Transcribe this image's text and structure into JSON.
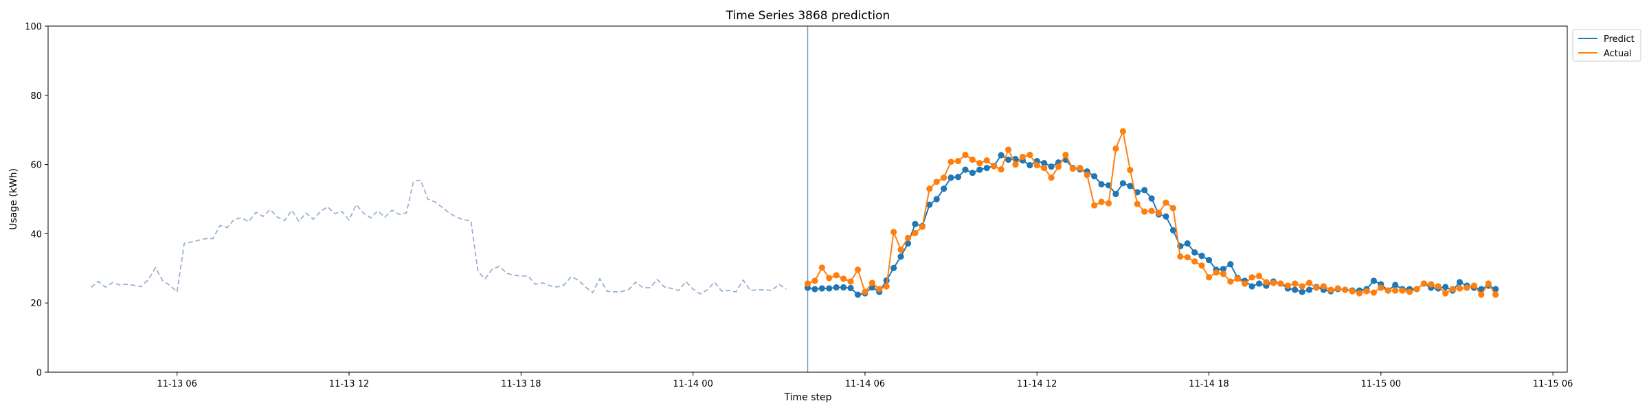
{
  "chart_data": {
    "type": "line",
    "title": "Time Series 3868 prediction",
    "xlabel": "Time step",
    "ylabel": "Usage (kWh)",
    "ylim": [
      0,
      100
    ],
    "yticks": [
      0,
      20,
      40,
      60,
      80,
      100
    ],
    "xlim": [
      "2024-11-13 01:30",
      "2024-11-15 06:30"
    ],
    "xticks": [
      {
        "t": "2024-11-13 06:00",
        "label": "11-13 06"
      },
      {
        "t": "2024-11-13 12:00",
        "label": "11-13 12"
      },
      {
        "t": "2024-11-13 18:00",
        "label": "11-13 18"
      },
      {
        "t": "2024-11-14 00:00",
        "label": "11-14 00"
      },
      {
        "t": "2024-11-14 06:00",
        "label": "11-14 06"
      },
      {
        "t": "2024-11-14 12:00",
        "label": "11-14 12"
      },
      {
        "t": "2024-11-14 18:00",
        "label": "11-14 18"
      },
      {
        "t": "2024-11-15 00:00",
        "label": "11-15 00"
      },
      {
        "t": "2024-11-15 06:00",
        "label": "11-15 06"
      }
    ],
    "vline": "2024-11-14 04:00",
    "legend_position": "upper-right-outside",
    "history": {
      "start": "2024-11-13 03:00",
      "step_minutes": 15,
      "color": "#9ab1d1",
      "style": "dashed",
      "values": [
        24.5,
        26.2,
        24.6,
        25.9,
        25.2,
        25.4,
        25.1,
        24.7,
        26.8,
        30.2,
        26.4,
        25.1,
        23.2,
        37.2,
        37.6,
        38.1,
        38.6,
        38.6,
        42.4,
        41.8,
        44.2,
        44.6,
        43.5,
        46.2,
        45.0,
        47.0,
        44.8,
        43.8,
        46.8,
        43.6,
        46.0,
        44.2,
        46.4,
        47.8,
        45.8,
        46.4,
        44.0,
        48.4,
        46.0,
        44.6,
        46.6,
        44.8,
        46.8,
        45.6,
        46.0,
        55.2,
        55.5,
        50.0,
        49.2,
        47.6,
        46.0,
        44.8,
        44.0,
        43.8,
        29.0,
        27.0,
        29.8,
        30.6,
        28.6,
        28.0,
        27.8,
        27.8,
        25.4,
        25.8,
        25.0,
        24.6,
        25.2,
        27.6,
        26.6,
        24.6,
        23.0,
        27.0,
        23.4,
        23.2,
        23.3,
        23.8,
        26.0,
        24.4,
        24.4,
        26.8,
        24.6,
        24.2,
        23.6,
        26.2,
        24.0,
        22.6,
        23.8,
        26.0,
        23.4,
        23.6,
        23.2,
        26.6,
        23.6,
        23.8,
        23.8,
        23.6,
        25.4,
        24.0
      ]
    },
    "forecast_start": "2024-11-14 04:00",
    "forecast_step_minutes": 15,
    "series": [
      {
        "name": "Predict",
        "color": "#1f77b4",
        "values": [
          24.4,
          24.0,
          24.2,
          24.2,
          24.5,
          24.5,
          24.3,
          22.4,
          22.8,
          24.5,
          23.2,
          26.5,
          30.1,
          33.4,
          37.2,
          42.8,
          42.2,
          48.4,
          50.0,
          53.0,
          56.2,
          56.4,
          58.5,
          57.6,
          58.5,
          59.0,
          59.6,
          62.7,
          61.4,
          61.6,
          61.2,
          59.8,
          61.0,
          60.4,
          59.4,
          60.6,
          61.4,
          59.0,
          58.6,
          58.0,
          56.6,
          54.3,
          54.0,
          51.5,
          54.6,
          53.8,
          52.0,
          52.6,
          50.2,
          45.6,
          45.0,
          41.0,
          36.4,
          37.2,
          34.6,
          33.6,
          32.4,
          29.6,
          29.8,
          31.2,
          27.2,
          26.4,
          24.8,
          25.6,
          25.0,
          26.2,
          25.6,
          24.2,
          23.8,
          23.2,
          23.8,
          24.6,
          23.8,
          23.4,
          24.0,
          23.8,
          23.6,
          23.6,
          24.0,
          26.4,
          25.4,
          23.6,
          25.2,
          24.0,
          24.0,
          24.0,
          25.6,
          24.4,
          24.2,
          24.6,
          23.6,
          26.0,
          25.0,
          24.4,
          24.0,
          25.0,
          24.0
        ]
      },
      {
        "name": "Actual",
        "color": "#ff7f0e",
        "values": [
          25.6,
          26.4,
          30.2,
          27.2,
          28.0,
          27.0,
          26.2,
          29.6,
          23.2,
          25.8,
          24.0,
          24.8,
          40.5,
          35.4,
          38.8,
          40.2,
          42.0,
          53.0,
          55.0,
          56.2,
          60.8,
          61.0,
          62.8,
          61.4,
          60.4,
          61.2,
          59.5,
          58.6,
          64.3,
          60.0,
          62.2,
          62.8,
          59.8,
          59.0,
          56.2,
          59.4,
          62.8,
          58.8,
          59.0,
          57.0,
          48.2,
          49.2,
          48.8,
          64.6,
          69.6,
          58.4,
          48.6,
          46.4,
          46.6,
          46.0,
          49.0,
          47.4,
          33.4,
          33.2,
          32.0,
          30.8,
          27.4,
          28.8,
          28.4,
          26.2,
          27.0,
          25.6,
          27.4,
          27.8,
          26.0,
          25.8,
          25.6,
          25.0,
          25.6,
          24.8,
          25.8,
          24.4,
          24.8,
          23.8,
          24.2,
          23.8,
          23.4,
          22.8,
          23.4,
          23.0,
          24.4,
          23.6,
          23.6,
          23.6,
          23.2,
          24.0,
          25.6,
          25.4,
          24.8,
          22.8,
          24.0,
          24.2,
          24.4,
          25.0,
          22.4,
          25.6,
          22.4
        ]
      }
    ]
  }
}
